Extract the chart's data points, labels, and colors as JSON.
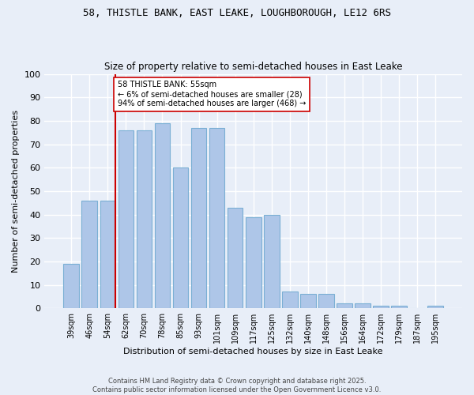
{
  "title1": "58, THISTLE BANK, EAST LEAKE, LOUGHBOROUGH, LE12 6RS",
  "title2": "Size of property relative to semi-detached houses in East Leake",
  "xlabel": "Distribution of semi-detached houses by size in East Leake",
  "ylabel": "Number of semi-detached properties",
  "categories": [
    "39sqm",
    "46sqm",
    "54sqm",
    "62sqm",
    "70sqm",
    "78sqm",
    "85sqm",
    "93sqm",
    "101sqm",
    "109sqm",
    "117sqm",
    "125sqm",
    "132sqm",
    "140sqm",
    "148sqm",
    "156sqm",
    "164sqm",
    "172sqm",
    "179sqm",
    "187sqm",
    "195sqm"
  ],
  "values": [
    19,
    46,
    46,
    76,
    76,
    79,
    60,
    77,
    77,
    43,
    39,
    40,
    7,
    6,
    6,
    2,
    2,
    1,
    1,
    0,
    1
  ],
  "bar_color": "#aec6e8",
  "bar_edge_color": "#7aafd4",
  "property_line_color": "#cc0000",
  "property_line_x": 2.4,
  "annotation_text": "58 THISTLE BANK: 55sqm\n← 6% of semi-detached houses are smaller (28)\n94% of semi-detached houses are larger (468) →",
  "annotation_box_color": "#ffffff",
  "annotation_box_edge": "#cc0000",
  "ylim": [
    0,
    100
  ],
  "yticks": [
    0,
    10,
    20,
    30,
    40,
    50,
    60,
    70,
    80,
    90,
    100
  ],
  "footer": "Contains HM Land Registry data © Crown copyright and database right 2025.\nContains public sector information licensed under the Open Government Licence v3.0.",
  "bg_color": "#e8eef8"
}
